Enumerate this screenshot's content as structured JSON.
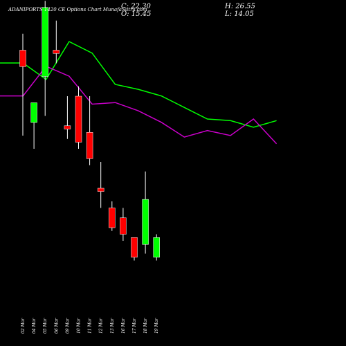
{
  "header": {
    "title": "ADANIPORTS 1420  CE Options  Chart MunafaSutra.com",
    "close": "C: 22.30",
    "open": "O: 15.45",
    "high": "H: 26.55",
    "low": "L: 14.05"
  },
  "chart_data": {
    "type": "candlestick",
    "title": "ADANIPORTS 1420  CE Options  Chart MunafaSutra.com",
    "categories": [
      "02 Mar",
      "04 Mar",
      "05 Mar",
      "06 Mar",
      "09 Mar",
      "10 Mar",
      "11 Mar",
      "12 Mar",
      "13 Mar",
      "16 Mar",
      "17 Mar",
      "18 Mar",
      "19 Mar"
    ],
    "candles": [
      {
        "date": "02 Mar",
        "open": 45.0,
        "high": 47.5,
        "low": 32.0,
        "close": 42.5,
        "dir": "down"
      },
      {
        "date": "04 Mar",
        "open": 34.0,
        "high": 37.0,
        "low": 30.0,
        "close": 37.0,
        "dir": "up"
      },
      {
        "date": "05 Mar",
        "open": 41.0,
        "high": 52.5,
        "low": 35.0,
        "close": 51.5,
        "dir": "up"
      },
      {
        "date": "06 Mar",
        "open": 45.0,
        "high": 49.5,
        "low": 43.0,
        "close": 44.5,
        "dir": "down"
      },
      {
        "date": "09 Mar",
        "open": 33.5,
        "high": 38.0,
        "low": 31.5,
        "close": 33.0,
        "dir": "down"
      },
      {
        "date": "10 Mar",
        "open": 38.0,
        "high": 39.5,
        "low": 30.0,
        "close": 31.0,
        "dir": "down"
      },
      {
        "date": "11 Mar",
        "open": 32.5,
        "high": 38.0,
        "low": 27.5,
        "close": 28.5,
        "dir": "down"
      },
      {
        "date": "12 Mar",
        "open": 24.0,
        "high": 28.0,
        "low": 21.0,
        "close": 23.5,
        "dir": "down"
      },
      {
        "date": "13 Mar",
        "open": 21.0,
        "high": 22.0,
        "low": 17.5,
        "close": 18.0,
        "dir": "down"
      },
      {
        "date": "16 Mar",
        "open": 19.5,
        "high": 21.0,
        "low": 16.0,
        "close": 17.0,
        "dir": "down"
      },
      {
        "date": "17 Mar",
        "open": 16.5,
        "high": 16.5,
        "low": 13.0,
        "close": 13.5,
        "dir": "down"
      },
      {
        "date": "18 Mar",
        "open": 15.45,
        "high": 26.55,
        "low": 14.05,
        "close": 22.3,
        "dir": "up"
      },
      {
        "date": "19 Mar",
        "open": 13.5,
        "high": 17.0,
        "low": 13.0,
        "close": 16.5,
        "dir": "up"
      }
    ],
    "upper_band": [
      92,
      92,
      82,
      105,
      98,
      79,
      76,
      72,
      65,
      58,
      57,
      53,
      57
    ],
    "lower_band": [
      72,
      72,
      90,
      84,
      67,
      68,
      63,
      56,
      47,
      51,
      48,
      58,
      43
    ],
    "colors": {
      "up": "#00ff00",
      "down": "#ff0000",
      "wick": "#ffffff",
      "upper_band": "#00ff00",
      "lower_band": "#cc00cc"
    }
  }
}
